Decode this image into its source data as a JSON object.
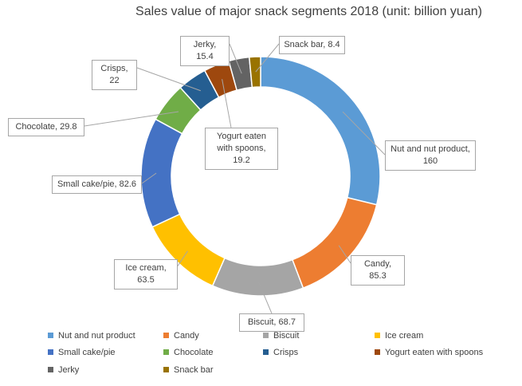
{
  "chart_data": {
    "type": "donut",
    "title": "Sales value of major snack segments 2018 (unit: billion yuan)",
    "categories": [
      "Nut and nut product",
      "Candy",
      "Biscuit",
      "Ice cream",
      "Small cake/pie",
      "Chocolate",
      "Crisps",
      "Yogurt eaten with spoons",
      "Jerky",
      "Snack bar"
    ],
    "values": [
      160,
      85.3,
      68.7,
      63.5,
      82.6,
      29.8,
      22,
      19.2,
      15.4,
      8.4
    ],
    "value_labels": [
      "Nut and nut product, 160",
      "Candy, 85.3",
      "Biscuit, 68.7",
      "Ice cream, 63.5",
      "Small cake/pie, 82.6",
      "Chocolate, 29.8",
      "Crisps, 22",
      "Yogurt eaten with spoons, 19.2",
      "Jerky, 15.4",
      "Snack bar, 8.4"
    ],
    "colors": [
      "#5b9bd5",
      "#ed7d31",
      "#a5a5a5",
      "#ffc000",
      "#4472c4",
      "#70ad47",
      "#255e91",
      "#9e480e",
      "#636363",
      "#997300"
    ],
    "legend": "bottom"
  }
}
